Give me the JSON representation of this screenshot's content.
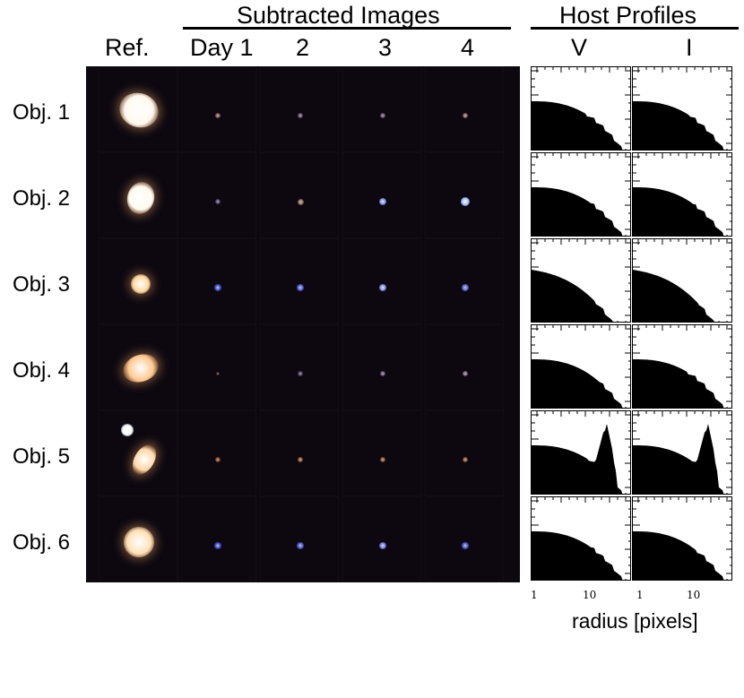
{
  "headers": {
    "subtracted": "Subtracted Images",
    "host": "Host Profiles",
    "ref": "Ref.",
    "days": [
      "Day 1",
      "2",
      "3",
      "4"
    ],
    "bands": [
      "V",
      "I"
    ]
  },
  "objects": [
    {
      "label": "Obj. 1",
      "ref_color": "#fff8ee",
      "snr_colors": [
        "#b07070",
        "#8a6a8a",
        "#8a6a8a",
        "#b07a6a"
      ],
      "snr_brightness": [
        0.4,
        0.35,
        0.35,
        0.45
      ]
    },
    {
      "label": "Obj. 2",
      "ref_color": "#fffaf0",
      "snr_colors": [
        "#6a5aa0",
        "#b08a70",
        "#8ea0ff",
        "#a8c0ff"
      ],
      "snr_brightness": [
        0.35,
        0.5,
        0.8,
        1.0
      ]
    },
    {
      "label": "Obj. 3",
      "ref_color": "#ffd8a0",
      "snr_colors": [
        "#4a60ff",
        "#5a70ff",
        "#8ea0ff",
        "#6a7aff"
      ],
      "snr_brightness": [
        0.6,
        0.6,
        0.8,
        0.6
      ]
    },
    {
      "label": "Obj. 4",
      "ref_color": "#ffc890",
      "snr_colors": [
        "#5a3a30",
        "#6a5a80",
        "#8a6aa0",
        "#a07aa0"
      ],
      "snr_brightness": [
        0.15,
        0.25,
        0.35,
        0.45
      ]
    },
    {
      "label": "Obj. 5",
      "ref_color": "#ffd8a8",
      "snr_colors": [
        "#b05a20",
        "#b06a30",
        "#b06a30",
        "#b06a30"
      ],
      "snr_brightness": [
        0.4,
        0.45,
        0.45,
        0.45
      ]
    },
    {
      "label": "Obj. 6",
      "ref_color": "#ffe0b8",
      "snr_colors": [
        "#4a58ff",
        "#5a68ff",
        "#7a8aff",
        "#5a6aff"
      ],
      "snr_brightness": [
        0.55,
        0.55,
        0.75,
        0.55
      ]
    }
  ],
  "axis": {
    "xlabel": "radius [pixels]",
    "ticks": [
      "1",
      "10",
      "1",
      "10"
    ]
  }
}
